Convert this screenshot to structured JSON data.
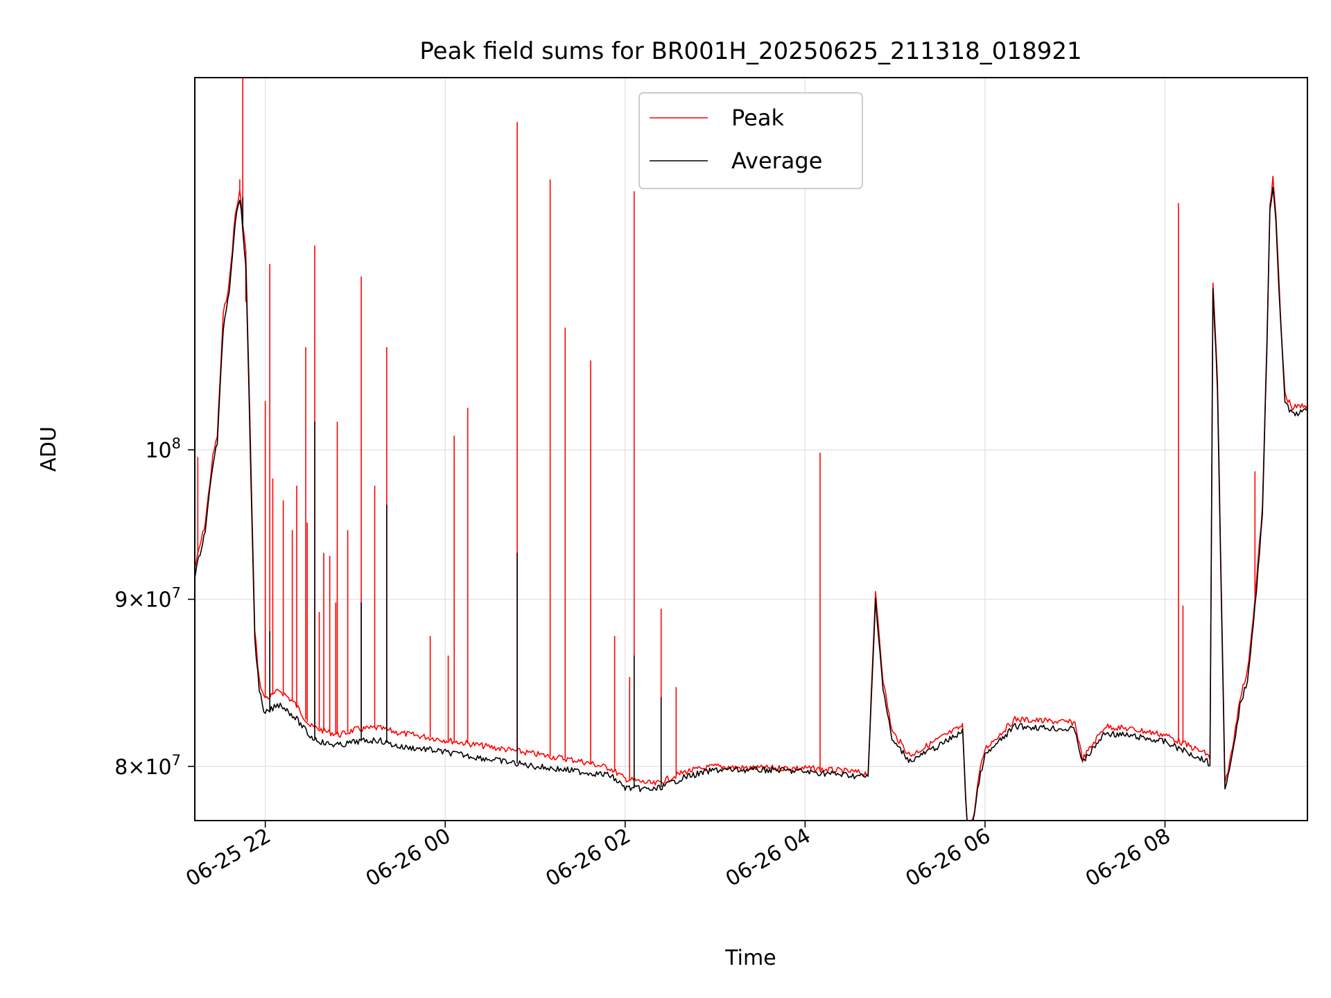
{
  "chart_data": {
    "type": "line",
    "title": "Peak field sums for BR001H_20250625_211318_018921",
    "xlabel": "Time",
    "ylabel": "ADU",
    "y_scale": "log",
    "xlim": [
      "2025-06-25 21:13",
      "2025-06-26 09:35"
    ],
    "ylim": [
      77000000,
      130000000
    ],
    "grid": true,
    "legend": {
      "position": "top-center"
    },
    "x_ticks": [
      {
        "value": "2025-06-25 22:00",
        "label": "06-25 22"
      },
      {
        "value": "2025-06-26 00:00",
        "label": "06-26 00"
      },
      {
        "value": "2025-06-26 02:00",
        "label": "06-26 02"
      },
      {
        "value": "2025-06-26 04:00",
        "label": "06-26 04"
      },
      {
        "value": "2025-06-26 06:00",
        "label": "06-26 06"
      },
      {
        "value": "2025-06-26 08:00",
        "label": "06-26 08"
      }
    ],
    "y_ticks": [
      {
        "value": 80000000,
        "mantissa": "8",
        "exponent": "7"
      },
      {
        "value": 90000000,
        "mantissa": "9",
        "exponent": "7"
      },
      {
        "value": 100000000,
        "mantissa": "",
        "exponent": "8"
      }
    ],
    "y_tick_base": "10",
    "y_tick_times": "×",
    "series": [
      {
        "name": "Peak",
        "color": "#ff0000",
        "x": [
          "2025-06-25 21:13",
          "2025-06-25 21:20",
          "2025-06-25 21:25",
          "2025-06-25 21:28",
          "2025-06-25 21:32",
          "2025-06-25 21:36",
          "2025-06-25 21:40",
          "2025-06-25 21:43",
          "2025-06-25 21:47",
          "2025-06-25 21:50",
          "2025-06-25 21:53",
          "2025-06-25 21:56",
          "2025-06-25 21:59",
          "2025-06-25 22:03",
          "2025-06-25 22:06",
          "2025-06-25 22:10",
          "2025-06-25 22:20",
          "2025-06-25 22:30",
          "2025-06-25 22:40",
          "2025-06-25 22:50",
          "2025-06-25 23:00",
          "2025-06-25 23:15",
          "2025-06-25 23:30",
          "2025-06-25 23:45",
          "2025-06-26 00:00",
          "2025-06-26 00:30",
          "2025-06-26 01:00",
          "2025-06-26 01:30",
          "2025-06-26 01:50",
          "2025-06-26 02:00",
          "2025-06-26 02:20",
          "2025-06-26 02:40",
          "2025-06-26 03:00",
          "2025-06-26 03:20",
          "2025-06-26 03:40",
          "2025-06-26 04:00",
          "2025-06-26 04:30",
          "2025-06-26 04:42",
          "2025-06-26 04:47",
          "2025-06-26 04:52",
          "2025-06-26 04:58",
          "2025-06-26 05:10",
          "2025-06-26 05:30",
          "2025-06-26 05:45",
          "2025-06-26 05:48",
          "2025-06-26 05:52",
          "2025-06-26 05:56",
          "2025-06-26 06:00",
          "2025-06-26 06:20",
          "2025-06-26 06:40",
          "2025-06-26 07:00",
          "2025-06-26 07:05",
          "2025-06-26 07:20",
          "2025-06-26 07:40",
          "2025-06-26 08:00",
          "2025-06-26 08:20",
          "2025-06-26 08:28",
          "2025-06-26 08:30",
          "2025-06-26 08:32",
          "2025-06-26 08:35",
          "2025-06-26 08:40",
          "2025-06-26 08:45",
          "2025-06-26 08:50",
          "2025-06-26 08:55",
          "2025-06-26 09:00",
          "2025-06-26 09:05",
          "2025-06-26 09:08",
          "2025-06-26 09:10",
          "2025-06-26 09:12",
          "2025-06-26 09:14",
          "2025-06-26 09:17",
          "2025-06-26 09:20",
          "2025-06-26 09:25",
          "2025-06-26 09:35"
        ],
        "values": [
          92000000,
          95000000,
          99500000,
          101000000,
          110000000,
          112500000,
          118000000,
          120000000,
          115000000,
          101000000,
          88000000,
          85000000,
          84000000,
          84000000,
          84200000,
          84400000,
          83600000,
          82300000,
          82000000,
          81800000,
          82100000,
          82200000,
          81900000,
          81700000,
          81500000,
          81100000,
          80700000,
          80300000,
          79900000,
          79300000,
          79000000,
          79700000,
          80000000,
          79900000,
          79900000,
          79900000,
          79700000,
          79600000,
          90500000,
          85000000,
          82000000,
          80600000,
          81600000,
          82300000,
          76800000,
          77000000,
          79500000,
          81000000,
          82700000,
          82600000,
          82500000,
          80400000,
          82300000,
          82100000,
          81800000,
          81000000,
          80700000,
          80400000,
          112500000,
          105000000,
          79000000,
          81000000,
          84000000,
          85500000,
          90000000,
          96000000,
          108000000,
          119000000,
          121000000,
          118000000,
          110000000,
          104000000,
          103000000,
          103200000
        ]
      },
      {
        "name": "Average",
        "color": "#000000",
        "x": [
          "2025-06-25 21:13",
          "2025-06-25 21:20",
          "2025-06-25 21:25",
          "2025-06-25 21:28",
          "2025-06-25 21:32",
          "2025-06-25 21:36",
          "2025-06-25 21:40",
          "2025-06-25 21:43",
          "2025-06-25 21:47",
          "2025-06-25 21:50",
          "2025-06-25 21:53",
          "2025-06-25 21:56",
          "2025-06-25 21:59",
          "2025-06-25 22:03",
          "2025-06-25 22:06",
          "2025-06-25 22:10",
          "2025-06-25 22:20",
          "2025-06-25 22:30",
          "2025-06-25 22:40",
          "2025-06-25 22:50",
          "2025-06-25 23:00",
          "2025-06-25 23:15",
          "2025-06-25 23:30",
          "2025-06-25 23:45",
          "2025-06-26 00:00",
          "2025-06-26 00:30",
          "2025-06-26 01:00",
          "2025-06-26 01:30",
          "2025-06-26 01:50",
          "2025-06-26 02:00",
          "2025-06-26 02:20",
          "2025-06-26 02:40",
          "2025-06-26 03:00",
          "2025-06-26 03:20",
          "2025-06-26 03:40",
          "2025-06-26 04:00",
          "2025-06-26 04:30",
          "2025-06-26 04:42",
          "2025-06-26 04:47",
          "2025-06-26 04:52",
          "2025-06-26 04:58",
          "2025-06-26 05:10",
          "2025-06-26 05:30",
          "2025-06-26 05:45",
          "2025-06-26 05:48",
          "2025-06-26 05:52",
          "2025-06-26 05:56",
          "2025-06-26 06:00",
          "2025-06-26 06:20",
          "2025-06-26 06:40",
          "2025-06-26 07:00",
          "2025-06-26 07:05",
          "2025-06-26 07:20",
          "2025-06-26 07:40",
          "2025-06-26 08:00",
          "2025-06-26 08:20",
          "2025-06-26 08:28",
          "2025-06-26 08:30",
          "2025-06-26 08:32",
          "2025-06-26 08:35",
          "2025-06-26 08:40",
          "2025-06-26 08:45",
          "2025-06-26 08:50",
          "2025-06-26 08:55",
          "2025-06-26 09:00",
          "2025-06-26 09:05",
          "2025-06-26 09:08",
          "2025-06-26 09:10",
          "2025-06-26 09:12",
          "2025-06-26 09:14",
          "2025-06-26 09:17",
          "2025-06-26 09:20",
          "2025-06-26 09:25",
          "2025-06-26 09:35"
        ],
        "values": [
          91500000,
          94500000,
          99000000,
          100500000,
          109000000,
          112000000,
          117500000,
          119500000,
          114000000,
          100000000,
          87500000,
          84500000,
          83000000,
          83200000,
          83400000,
          83600000,
          82800000,
          81700000,
          81300000,
          81200000,
          81400000,
          81500000,
          81100000,
          81000000,
          80800000,
          80400000,
          80000000,
          79700000,
          79500000,
          78800000,
          78700000,
          79400000,
          79800000,
          79800000,
          79800000,
          79700000,
          79500000,
          79400000,
          90000000,
          84500000,
          81500000,
          80300000,
          81200000,
          82000000,
          76600000,
          76800000,
          79200000,
          80600000,
          82300000,
          82200000,
          82100000,
          80200000,
          81900000,
          81700000,
          81400000,
          80600000,
          80300000,
          80000000,
          112000000,
          104500000,
          78600000,
          80600000,
          83500000,
          85000000,
          89500000,
          95500000,
          107500000,
          118500000,
          120500000,
          117500000,
          109500000,
          103500000,
          102500000,
          102800000
        ]
      }
    ],
    "spikes": {
      "Peak": [
        [
          "2025-06-25 21:15",
          99500000
        ],
        [
          "2025-06-25 21:32",
          110000000
        ],
        [
          "2025-06-25 21:43",
          121000000
        ],
        [
          "2025-06-25 21:45",
          137000000
        ],
        [
          "2025-06-25 21:47",
          111000000
        ],
        [
          "2025-06-25 22:00",
          103500000
        ],
        [
          "2025-06-25 22:03",
          114000000
        ],
        [
          "2025-06-25 22:05",
          98000000
        ],
        [
          "2025-06-25 22:12",
          96500000
        ],
        [
          "2025-06-25 22:18",
          94500000
        ],
        [
          "2025-06-25 22:21",
          97500000
        ],
        [
          "2025-06-25 22:27",
          107500000
        ],
        [
          "2025-06-25 22:28",
          95000000
        ],
        [
          "2025-06-25 22:33",
          115500000
        ],
        [
          "2025-06-25 22:36",
          89200000
        ],
        [
          "2025-06-25 22:39",
          93000000
        ],
        [
          "2025-06-25 22:43",
          92800000
        ],
        [
          "2025-06-25 22:47",
          89800000
        ],
        [
          "2025-06-25 22:48",
          102000000
        ],
        [
          "2025-06-25 22:55",
          94500000
        ],
        [
          "2025-06-25 23:04",
          113000000
        ],
        [
          "2025-06-25 23:13",
          97500000
        ],
        [
          "2025-06-25 23:21",
          107500000
        ],
        [
          "2025-06-25 23:50",
          87700000
        ],
        [
          "2025-06-26 00:02",
          86500000
        ],
        [
          "2025-06-26 00:06",
          101000000
        ],
        [
          "2025-06-26 00:15",
          103000000
        ],
        [
          "2025-06-26 00:48",
          126000000
        ],
        [
          "2025-06-26 01:10",
          121000000
        ],
        [
          "2025-06-26 01:20",
          109000000
        ],
        [
          "2025-06-26 01:37",
          106500000
        ],
        [
          "2025-06-26 01:53",
          87700000
        ],
        [
          "2025-06-26 02:03",
          85200000
        ],
        [
          "2025-06-26 02:06",
          120000000
        ],
        [
          "2025-06-26 02:24",
          89400000
        ],
        [
          "2025-06-26 02:34",
          84600000
        ],
        [
          "2025-06-26 04:10",
          99800000
        ],
        [
          "2025-06-26 08:09",
          119000000
        ],
        [
          "2025-06-26 08:12",
          89600000
        ],
        [
          "2025-06-26 09:00",
          98500000
        ]
      ],
      "Average": [
        [
          "2025-06-25 21:32",
          109000000
        ],
        [
          "2025-06-25 21:43",
          119500000
        ],
        [
          "2025-06-25 21:45",
          119500000
        ],
        [
          "2025-06-25 22:03",
          88000000
        ],
        [
          "2025-06-25 22:33",
          102000000
        ],
        [
          "2025-06-25 23:04",
          89800000
        ],
        [
          "2025-06-25 23:21",
          96200000
        ],
        [
          "2025-06-26 00:48",
          93000000
        ],
        [
          "2025-06-26 02:06",
          86500000
        ],
        [
          "2025-06-26 02:24",
          84000000
        ],
        [
          "2025-06-26 08:32",
          112000000
        ]
      ]
    }
  }
}
